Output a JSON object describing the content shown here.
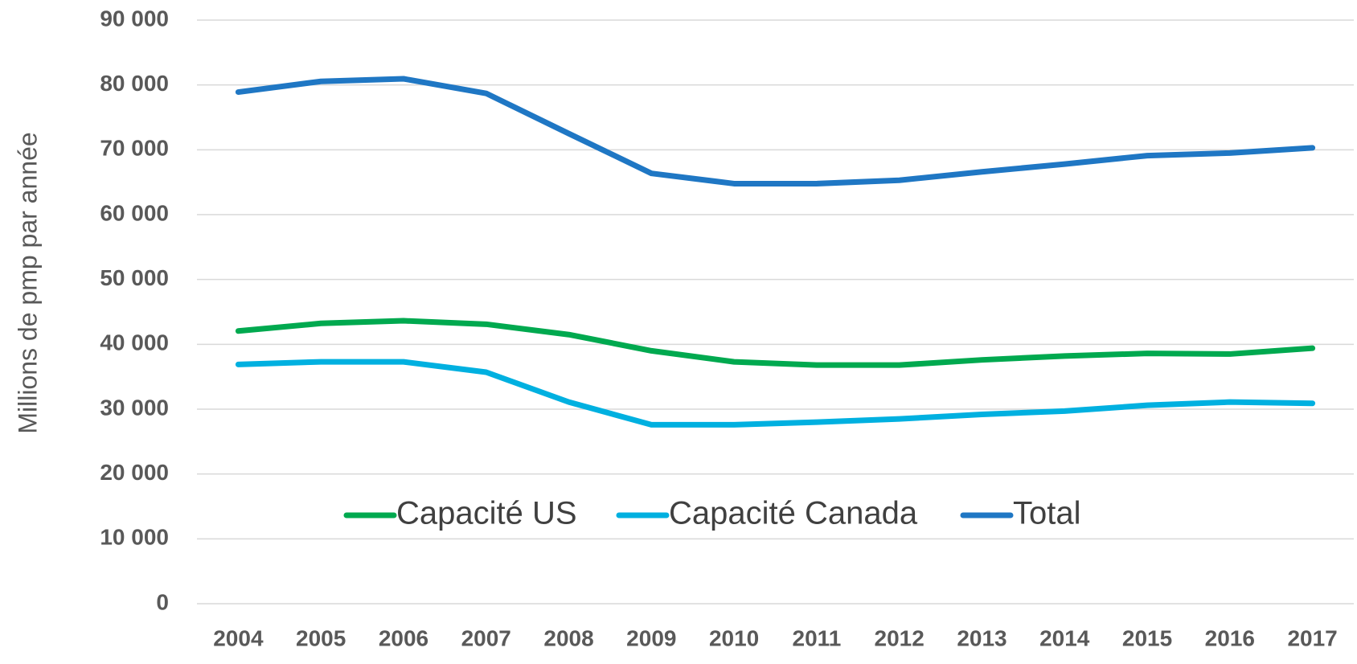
{
  "chart_data": {
    "type": "line",
    "y_label": "Millions de pmp par année",
    "categories": [
      "2004",
      "2005",
      "2006",
      "2007",
      "2008",
      "2009",
      "2010",
      "2011",
      "2012",
      "2013",
      "2014",
      "2015",
      "2016",
      "2017"
    ],
    "series": [
      {
        "name": "Capacité US",
        "color": "#00a94f",
        "values": [
          42050,
          43230,
          43630,
          43100,
          41500,
          39000,
          37300,
          36800,
          36800,
          37600,
          38200,
          38600,
          38500,
          39400
        ]
      },
      {
        "name": "Capacité Canada",
        "color": "#00b0e0",
        "values": [
          36900,
          37300,
          37300,
          35700,
          31100,
          27600,
          27600,
          28000,
          28500,
          29200,
          29700,
          30600,
          31100,
          30900
        ]
      },
      {
        "name": "Total",
        "color": "#1f77c4",
        "values": [
          78900,
          80550,
          80950,
          78700,
          72500,
          66360,
          64780,
          64780,
          65300,
          66600,
          67800,
          69100,
          69500,
          70300
        ]
      }
    ],
    "ylim": [
      0,
      90000
    ],
    "yticks": [
      {
        "value": 0,
        "label": "0"
      },
      {
        "value": 10000,
        "label": "10 000"
      },
      {
        "value": 20000,
        "label": "20 000"
      },
      {
        "value": 30000,
        "label": "30 000"
      },
      {
        "value": 40000,
        "label": "40 000"
      },
      {
        "value": 50000,
        "label": "50 000"
      },
      {
        "value": 60000,
        "label": "60 000"
      },
      {
        "value": 70000,
        "label": "70 000"
      },
      {
        "value": 80000,
        "label": "80 000"
      },
      {
        "value": 90000,
        "label": "90 000"
      }
    ],
    "grid": true,
    "legend": "bottom"
  }
}
